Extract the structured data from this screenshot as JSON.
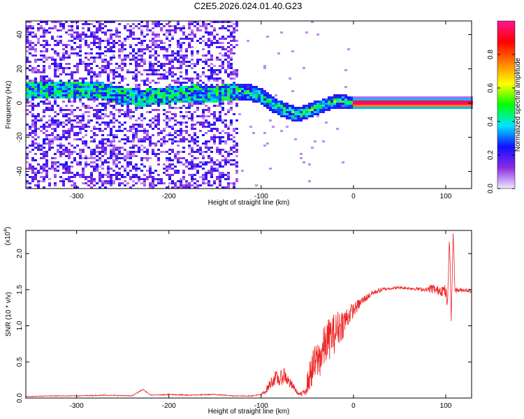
{
  "title": "C2E5.2026.024.01.40.G23",
  "chart_data": [
    {
      "type": "heatmap",
      "xlabel": "Height of straight line (km)",
      "ylabel": "Frequency (Hz)",
      "xlim": [
        -355,
        128
      ],
      "ylim": [
        -50,
        48
      ],
      "xticks": [
        -300,
        -200,
        -100,
        0,
        100
      ],
      "yticks": [
        -40,
        -20,
        0,
        20,
        40
      ],
      "xtick_labels": [
        "-300",
        "-200",
        "-100",
        "0",
        "100"
      ],
      "ytick_labels": [
        "-40",
        "-20",
        "0",
        "20",
        "40"
      ],
      "ridge_x": [
        -290,
        -270,
        -250,
        -230,
        -210,
        -190,
        -170,
        -150,
        -130,
        -110,
        -100,
        -90,
        -80,
        -70,
        -60,
        -50,
        -40,
        -30,
        -20,
        -10,
        0,
        50,
        100,
        128
      ],
      "ridge_freq": [
        8,
        7,
        4,
        3,
        4,
        5,
        6,
        5,
        7,
        6,
        4,
        0,
        -3,
        -5,
        -7,
        -5,
        -3,
        -1,
        1,
        1,
        0,
        0,
        0,
        0
      ],
      "colorbar": {
        "label": "Normalized spectral amplitude",
        "range": [
          0,
          1
        ],
        "ticks": [
          0.0,
          0.2,
          0.4,
          0.6,
          0.8
        ],
        "tick_labels": [
          "0.0",
          "0.2",
          "0.4",
          "0.6",
          "0.8"
        ],
        "colors": [
          "#f0e8ff",
          "#8a2be2",
          "#1010ff",
          "#00e5ff",
          "#00ff00",
          "#ffff00",
          "#ff8000",
          "#ff0000",
          "#ff1493"
        ]
      }
    },
    {
      "type": "line",
      "xlabel": "Height of straight line (km)",
      "ylabel": "SNR (10 * v/v)",
      "scale_label": "(x10",
      "scale_exp": "4",
      "xlim": [
        -355,
        128
      ],
      "ylim": [
        0,
        2.32
      ],
      "xticks": [
        -300,
        -200,
        -100,
        0,
        100
      ],
      "yticks": [
        0.0,
        0.5,
        1.0,
        1.5,
        2.0
      ],
      "xtick_labels": [
        "-300",
        "-200",
        "-100",
        "0",
        "100"
      ],
      "ytick_labels": [
        "0.0",
        "0.5",
        "1.0",
        "1.5",
        "2.0"
      ],
      "color": "#ee2222",
      "series": [
        {
          "x": [
            -355,
            -330,
            -300,
            -270,
            -240,
            -228,
            -220,
            -200,
            -180,
            -150,
            -130,
            -110,
            -100,
            -95,
            -90,
            -85,
            -80,
            -75,
            -70,
            -65,
            -60,
            -55,
            -50,
            -45,
            -40,
            -35,
            -30,
            -25,
            -20,
            -15,
            -10,
            -5,
            0,
            10,
            20,
            30,
            40,
            50,
            60,
            70,
            80,
            85,
            90,
            95,
            100,
            102,
            104,
            106,
            108,
            110,
            115,
            120,
            128
          ],
          "y": [
            0.02,
            0.03,
            0.03,
            0.04,
            0.03,
            0.12,
            0.04,
            0.05,
            0.04,
            0.05,
            0.03,
            0.03,
            0.05,
            0.1,
            0.2,
            0.28,
            0.25,
            0.33,
            0.22,
            0.15,
            0.06,
            0.05,
            0.2,
            0.4,
            0.5,
            0.6,
            0.75,
            0.85,
            0.9,
            1.0,
            1.05,
            1.15,
            1.22,
            1.35,
            1.45,
            1.5,
            1.52,
            1.53,
            1.52,
            1.51,
            1.5,
            1.52,
            1.49,
            1.5,
            1.47,
            1.25,
            2.3,
            1.05,
            2.32,
            1.5,
            1.49,
            1.5,
            1.48
          ],
          "noise": [
            0.005,
            0.005,
            0.005,
            0.008,
            0.006,
            0.005,
            0.005,
            0.008,
            0.008,
            0.008,
            0.006,
            0.006,
            0.01,
            0.04,
            0.08,
            0.1,
            0.1,
            0.12,
            0.08,
            0.05,
            0.02,
            0.04,
            0.15,
            0.25,
            0.28,
            0.3,
            0.3,
            0.3,
            0.28,
            0.25,
            0.2,
            0.15,
            0.1,
            0.06,
            0.04,
            0.03,
            0.02,
            0.02,
            0.02,
            0.025,
            0.03,
            0.08,
            0.06,
            0.08,
            0.1,
            0.1,
            0.1,
            0.1,
            0.1,
            0.04,
            0.03,
            0.03,
            0.03
          ]
        }
      ]
    }
  ]
}
